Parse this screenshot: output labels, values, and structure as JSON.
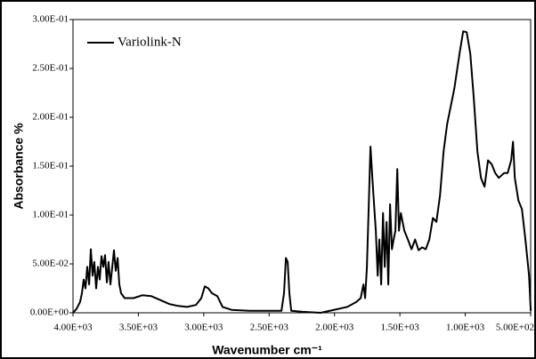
{
  "chart_data": {
    "type": "line",
    "x_label": "Wavenumber cm⁻¹",
    "y_label": "Absorbance %",
    "xlim": [
      4000,
      500
    ],
    "ylim": [
      0,
      0.3
    ],
    "xticks": [
      {
        "value": 4000,
        "label": "4.00E+03"
      },
      {
        "value": 3500,
        "label": "3.50E+03"
      },
      {
        "value": 3000,
        "label": "3.00E+03"
      },
      {
        "value": 2500,
        "label": "2.50E+03"
      },
      {
        "value": 2000,
        "label": "2.00E+03"
      },
      {
        "value": 1500,
        "label": "1.50E+03"
      },
      {
        "value": 1000,
        "label": "1.00E+03"
      },
      {
        "value": 500,
        "label": "5.00E+02"
      }
    ],
    "yticks": [
      {
        "value": 0,
        "label": "0.00E+00"
      },
      {
        "value": 0.05,
        "label": "5.00E-02"
      },
      {
        "value": 0.1,
        "label": "1.00E-01"
      },
      {
        "value": 0.15,
        "label": "1.50E-01"
      },
      {
        "value": 0.2,
        "label": "2.00E-01"
      },
      {
        "value": 0.25,
        "label": "2.50E-01"
      },
      {
        "value": 0.3,
        "label": "3.00E-01"
      }
    ],
    "legend": "top-left",
    "x": [
      4000,
      3973,
      3946,
      3932,
      3918,
      3905,
      3891,
      3877,
      3864,
      3850,
      3837,
      3823,
      3809,
      3796,
      3782,
      3768,
      3755,
      3741,
      3728,
      3714,
      3700,
      3687,
      3673,
      3659,
      3646,
      3632,
      3605,
      3537,
      3469,
      3401,
      3332,
      3264,
      3196,
      3128,
      3060,
      3019,
      2992,
      2965,
      2937,
      2896,
      2856,
      2788,
      2651,
      2515,
      2406,
      2386,
      2372,
      2358,
      2345,
      2331,
      2243,
      2106,
      1970,
      1902,
      1834,
      1800,
      1779,
      1766,
      1752,
      1738,
      1725,
      1711,
      1698,
      1684,
      1670,
      1657,
      1643,
      1629,
      1616,
      1602,
      1589,
      1575,
      1561,
      1548,
      1534,
      1520,
      1507,
      1493,
      1466,
      1439,
      1411,
      1384,
      1357,
      1330,
      1302,
      1275,
      1248,
      1221,
      1193,
      1166,
      1139,
      1084,
      1044,
      1016,
      989,
      962,
      935,
      907,
      880,
      853,
      826,
      798,
      771,
      744,
      703,
      676,
      649,
      635,
      621,
      594,
      567,
      540,
      512,
      499
    ],
    "series": [
      {
        "name": "Variolink-N",
        "color": "#000000",
        "values": [
          0,
          0.004,
          0.011,
          0.02,
          0.034,
          0.025,
          0.047,
          0.029,
          0.065,
          0.038,
          0.052,
          0.025,
          0.047,
          0.034,
          0.058,
          0.047,
          0.059,
          0.031,
          0.052,
          0.029,
          0.047,
          0.064,
          0.043,
          0.056,
          0.029,
          0.02,
          0.015,
          0.015,
          0.018,
          0.017,
          0.013,
          0.009,
          0.007,
          0.006,
          0.008,
          0.015,
          0.027,
          0.025,
          0.02,
          0.017,
          0.006,
          0.003,
          0.002,
          0.002,
          0.002,
          0.02,
          0.056,
          0.052,
          0.02,
          0.002,
          0.001,
          0,
          0.004,
          0.006,
          0.011,
          0.015,
          0.029,
          0.015,
          0.047,
          0.111,
          0.17,
          0.138,
          0.111,
          0.084,
          0.038,
          0.075,
          0.029,
          0.102,
          0.047,
          0.093,
          0.029,
          0.111,
          0.065,
          0.075,
          0.084,
          0.147,
          0.084,
          0.102,
          0.084,
          0.075,
          0.065,
          0.075,
          0.064,
          0.067,
          0.065,
          0.075,
          0.097,
          0.093,
          0.12,
          0.165,
          0.193,
          0.229,
          0.265,
          0.288,
          0.287,
          0.265,
          0.22,
          0.165,
          0.138,
          0.129,
          0.156,
          0.152,
          0.143,
          0.138,
          0.143,
          0.143,
          0.156,
          0.175,
          0.138,
          0.115,
          0.106,
          0.075,
          0.038,
          0.002
        ]
      }
    ]
  }
}
